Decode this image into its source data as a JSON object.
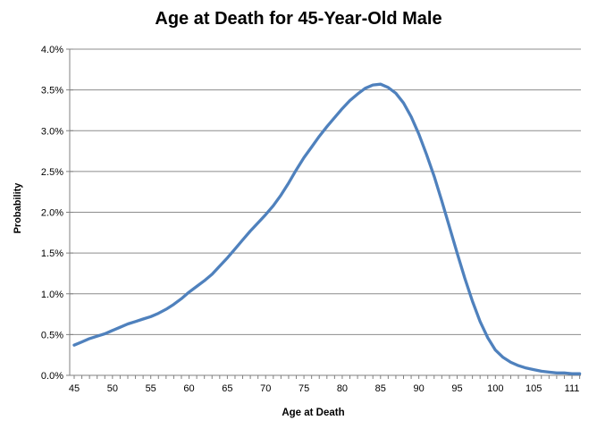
{
  "title": "Age at Death for 45-Year-Old Male",
  "colors": {
    "line": "#4F81BD",
    "gridline": "#8C8C8C",
    "axis": "#808080",
    "text": "#000000",
    "background": "#FFFFFF"
  },
  "chart_data": {
    "type": "line",
    "title": "Age at Death for 45-Year-Old Male",
    "xlabel": "Age at Death",
    "ylabel": "Probability",
    "xlim": [
      45,
      111
    ],
    "ylim_percent": [
      0.0,
      4.0
    ],
    "grid": "horizontal",
    "legend": "none",
    "y_tick_labels": [
      "0.0%",
      "0.5%",
      "1.0%",
      "1.5%",
      "2.0%",
      "2.5%",
      "3.0%",
      "3.5%",
      "4.0%"
    ],
    "y_tick_values": [
      0.0,
      0.5,
      1.0,
      1.5,
      2.0,
      2.5,
      3.0,
      3.5,
      4.0
    ],
    "x_tick_labels": [
      "45",
      "50",
      "55",
      "60",
      "65",
      "70",
      "75",
      "80",
      "85",
      "90",
      "95",
      "100",
      "105",
      "111"
    ],
    "x": [
      45,
      46,
      47,
      48,
      49,
      50,
      51,
      52,
      53,
      54,
      55,
      56,
      57,
      58,
      59,
      60,
      61,
      62,
      63,
      64,
      65,
      66,
      67,
      68,
      69,
      70,
      71,
      72,
      73,
      74,
      75,
      76,
      77,
      78,
      79,
      80,
      81,
      82,
      83,
      84,
      85,
      86,
      87,
      88,
      89,
      90,
      91,
      92,
      93,
      94,
      95,
      96,
      97,
      98,
      99,
      100,
      101,
      102,
      103,
      104,
      105,
      106,
      107,
      108,
      109,
      110,
      111
    ],
    "y_percent": [
      0.37,
      0.41,
      0.45,
      0.48,
      0.51,
      0.55,
      0.59,
      0.63,
      0.66,
      0.69,
      0.72,
      0.76,
      0.81,
      0.87,
      0.94,
      1.02,
      1.09,
      1.16,
      1.24,
      1.34,
      1.44,
      1.55,
      1.66,
      1.77,
      1.87,
      1.97,
      2.08,
      2.21,
      2.36,
      2.52,
      2.67,
      2.8,
      2.93,
      3.05,
      3.16,
      3.27,
      3.37,
      3.45,
      3.52,
      3.56,
      3.57,
      3.53,
      3.46,
      3.34,
      3.17,
      2.96,
      2.71,
      2.44,
      2.14,
      1.82,
      1.5,
      1.19,
      0.91,
      0.66,
      0.46,
      0.31,
      0.22,
      0.16,
      0.12,
      0.09,
      0.07,
      0.05,
      0.04,
      0.03,
      0.03,
      0.02,
      0.02
    ],
    "peak": {
      "age": 85,
      "probability_percent": 3.57
    }
  }
}
